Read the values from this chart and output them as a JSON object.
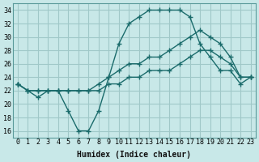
{
  "xlabel": "Humidex (Indice chaleur)",
  "bg_color": "#c8e8e8",
  "grid_color": "#a0c8c8",
  "line_color": "#1a6b6b",
  "xlim": [
    -0.5,
    23.5
  ],
  "ylim": [
    15,
    35
  ],
  "yticks": [
    16,
    18,
    20,
    22,
    24,
    26,
    28,
    30,
    32,
    34
  ],
  "xticks": [
    0,
    1,
    2,
    3,
    4,
    5,
    6,
    7,
    8,
    9,
    10,
    11,
    12,
    13,
    14,
    15,
    16,
    17,
    18,
    19,
    20,
    21,
    22,
    23
  ],
  "line1_x": [
    0,
    1,
    2,
    3,
    4,
    5,
    6,
    7,
    8,
    9,
    10,
    11,
    12,
    13,
    14,
    15,
    16,
    17,
    18,
    19,
    20,
    21,
    22,
    23
  ],
  "line1_y": [
    23,
    22,
    21,
    22,
    22,
    19,
    16,
    16,
    19,
    24,
    29,
    32,
    33,
    34,
    34,
    34,
    34,
    33,
    29,
    27,
    25,
    25,
    23,
    24
  ],
  "line2_x": [
    0,
    1,
    2,
    3,
    4,
    5,
    6,
    7,
    8,
    9,
    10,
    11,
    12,
    13,
    14,
    15,
    16,
    17,
    18,
    19,
    20,
    21,
    22,
    23
  ],
  "line2_y": [
    23,
    22,
    22,
    22,
    22,
    22,
    22,
    22,
    23,
    24,
    25,
    26,
    26,
    27,
    27,
    28,
    29,
    30,
    31,
    30,
    29,
    27,
    24,
    24
  ],
  "line3_x": [
    0,
    1,
    2,
    3,
    4,
    5,
    6,
    7,
    8,
    9,
    10,
    11,
    12,
    13,
    14,
    15,
    16,
    17,
    18,
    19,
    20,
    21,
    22,
    23
  ],
  "line3_y": [
    23,
    22,
    22,
    22,
    22,
    22,
    22,
    22,
    22,
    23,
    23,
    24,
    24,
    25,
    25,
    25,
    26,
    27,
    28,
    28,
    27,
    26,
    24,
    24
  ]
}
